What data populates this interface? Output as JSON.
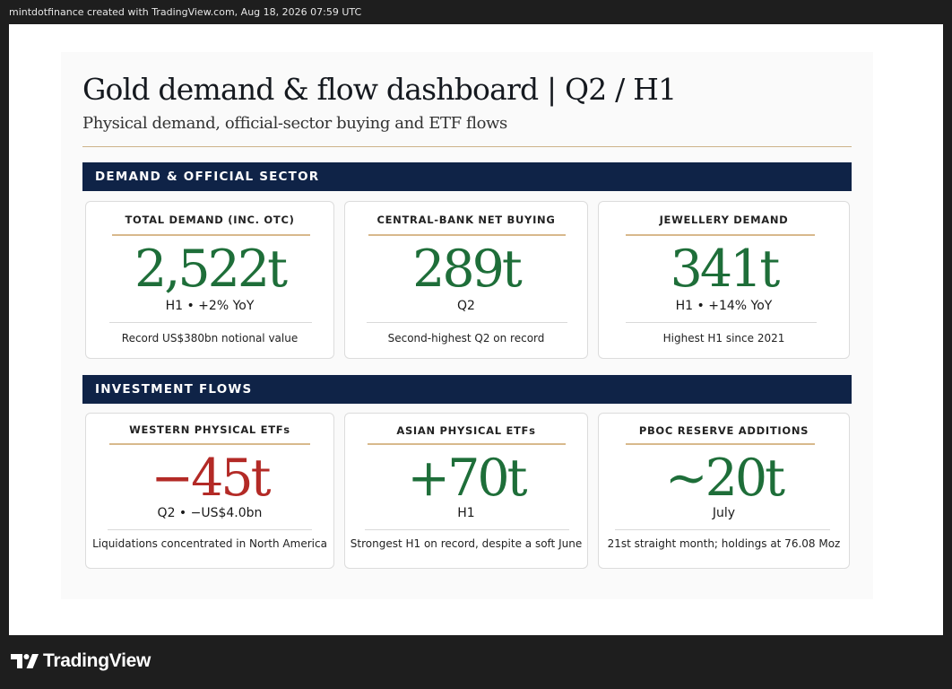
{
  "header": {
    "attribution": "mintdotfinance created with TradingView.com, Aug 18, 2026 07:59 UTC"
  },
  "dashboard": {
    "title": "Gold demand & flow dashboard | Q2 / H1",
    "subtitle": "Physical demand, official-sector buying and ETF flows",
    "sections": [
      {
        "heading": "DEMAND & OFFICIAL SECTOR",
        "cards": [
          {
            "label": "TOTAL DEMAND (INC. OTC)",
            "value": "2,522t",
            "period": "H1 • +2% YoY",
            "note": "Record US$380bn notional value",
            "tone": "positive"
          },
          {
            "label": "CENTRAL-BANK NET BUYING",
            "value": "289t",
            "period": "Q2",
            "note": "Second-highest Q2 on record",
            "tone": "positive"
          },
          {
            "label": "JEWELLERY DEMAND",
            "value": "341t",
            "period": "H1 • +14% YoY",
            "note": "Highest H1 since 2021",
            "tone": "positive"
          }
        ]
      },
      {
        "heading": "INVESTMENT FLOWS",
        "cards": [
          {
            "label": "WESTERN PHYSICAL ETFs",
            "value": "−45t",
            "period": "Q2 • −US$4.0bn",
            "note": "Liquidations concentrated in North America",
            "tone": "negative"
          },
          {
            "label": "ASIAN PHYSICAL ETFs",
            "value": "+70t",
            "period": "H1",
            "note": "Strongest H1 on record, despite a soft June",
            "tone": "positive"
          },
          {
            "label": "PBOC RESERVE ADDITIONS",
            "value": "~20t",
            "period": "July",
            "note": "21st straight month; holdings at 76.08 Moz",
            "tone": "positive"
          }
        ]
      }
    ]
  },
  "footer": {
    "brand": "TradingView",
    "logo_icon": "tradingview-logo-icon"
  },
  "colors": {
    "banner": "#0f2347",
    "positive": "#1e6e39",
    "negative": "#b32a26",
    "accent_rule": "#cdb38a"
  }
}
